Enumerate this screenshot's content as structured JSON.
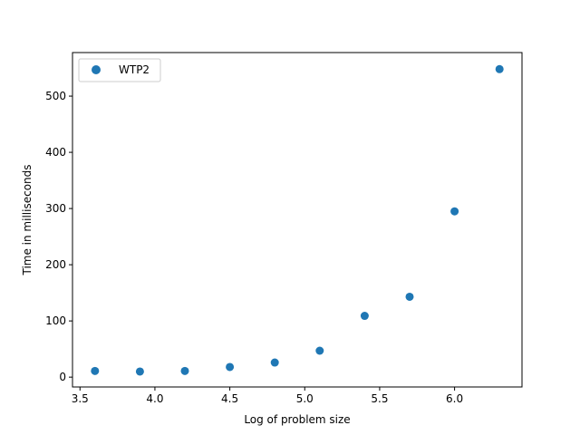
{
  "chart_data": {
    "type": "scatter",
    "title": "",
    "xlabel": "Log of problem size",
    "ylabel": "Time in milliseconds",
    "xlim": [
      3.45,
      6.45
    ],
    "ylim": [
      -17.5,
      577.5
    ],
    "xticks": [
      3.5,
      4.0,
      4.5,
      5.0,
      5.5,
      6.0
    ],
    "xtick_labels": [
      "3.5",
      "4.0",
      "4.5",
      "5.0",
      "5.5",
      "6.0"
    ],
    "yticks": [
      0,
      100,
      200,
      300,
      400,
      500
    ],
    "ytick_labels": [
      "0",
      "100",
      "200",
      "300",
      "400",
      "500"
    ],
    "grid": false,
    "legend_position": "top-left",
    "series": [
      {
        "name": "WTP2",
        "color": "#1f77b4",
        "x": [
          3.6,
          3.9,
          4.2,
          4.5,
          4.8,
          5.1,
          5.4,
          5.7,
          6.0,
          6.3
        ],
        "y": [
          11,
          10,
          11,
          18,
          26,
          47,
          109,
          143,
          295,
          548
        ]
      }
    ]
  }
}
